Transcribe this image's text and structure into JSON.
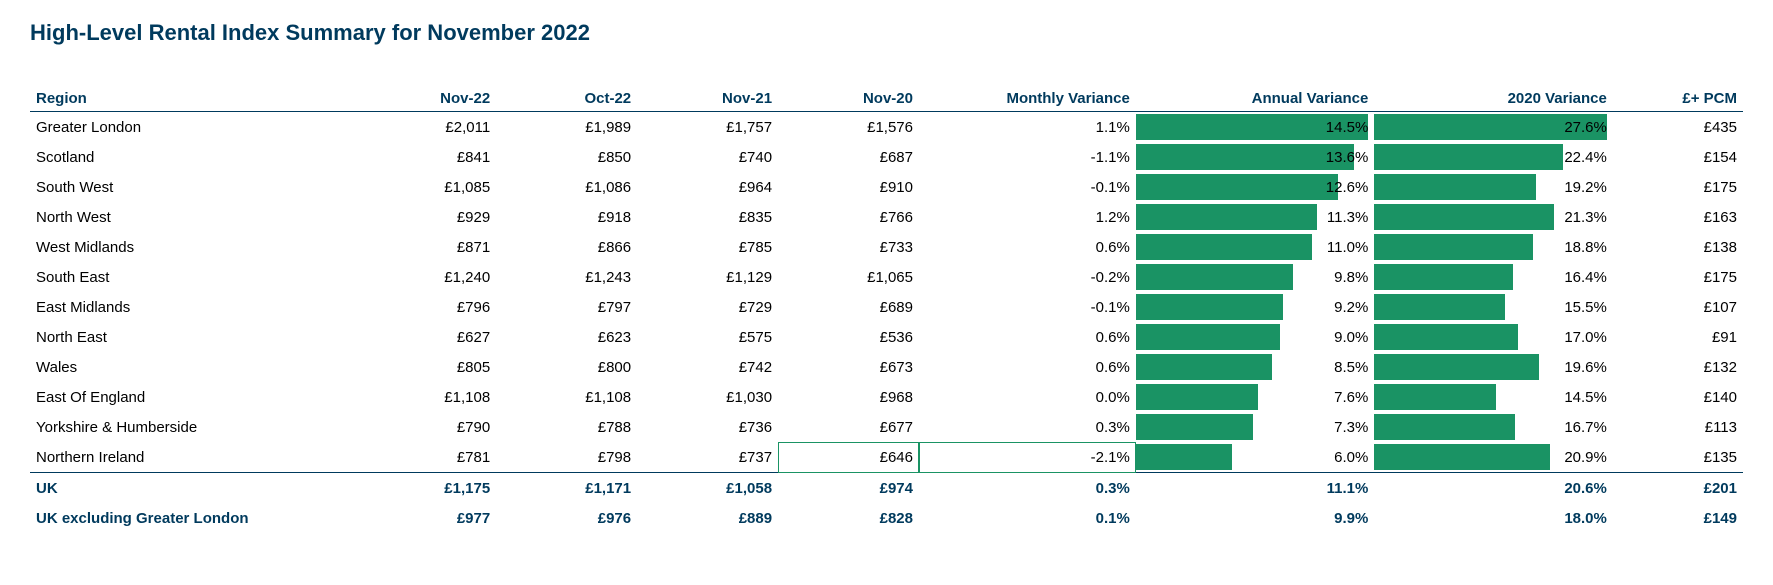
{
  "title": "High-Level Rental Index Summary for November 2022",
  "header_color": "#003a5d",
  "bar_color": "#1a9364",
  "columns": {
    "region": "Region",
    "nov22": "Nov-22",
    "oct22": "Oct-22",
    "nov21": "Nov-21",
    "nov20": "Nov-20",
    "mv": "Monthly Variance",
    "av": "Annual Variance",
    "v20": "2020 Variance",
    "pcm": "£+ PCM"
  },
  "av_max": 14.5,
  "v20_max": 27.6,
  "rows": [
    {
      "region": "Greater London",
      "nov22": "£2,011",
      "oct22": "£1,989",
      "nov21": "£1,757",
      "nov20": "£1,576",
      "mv": "1.1%",
      "av": "14.5%",
      "av_n": 14.5,
      "v20": "27.6%",
      "v20_n": 27.6,
      "pcm": "£435"
    },
    {
      "region": "Scotland",
      "nov22": "£841",
      "oct22": "£850",
      "nov21": "£740",
      "nov20": "£687",
      "mv": "-1.1%",
      "av": "13.6%",
      "av_n": 13.6,
      "v20": "22.4%",
      "v20_n": 22.4,
      "pcm": "£154"
    },
    {
      "region": "South West",
      "nov22": "£1,085",
      "oct22": "£1,086",
      "nov21": "£964",
      "nov20": "£910",
      "mv": "-0.1%",
      "av": "12.6%",
      "av_n": 12.6,
      "v20": "19.2%",
      "v20_n": 19.2,
      "pcm": "£175"
    },
    {
      "region": "North West",
      "nov22": "£929",
      "oct22": "£918",
      "nov21": "£835",
      "nov20": "£766",
      "mv": "1.2%",
      "av": "11.3%",
      "av_n": 11.3,
      "v20": "21.3%",
      "v20_n": 21.3,
      "pcm": "£163"
    },
    {
      "region": "West Midlands",
      "nov22": "£871",
      "oct22": "£866",
      "nov21": "£785",
      "nov20": "£733",
      "mv": "0.6%",
      "av": "11.0%",
      "av_n": 11.0,
      "v20": "18.8%",
      "v20_n": 18.8,
      "pcm": "£138"
    },
    {
      "region": "South East",
      "nov22": "£1,240",
      "oct22": "£1,243",
      "nov21": "£1,129",
      "nov20": "£1,065",
      "mv": "-0.2%",
      "av": "9.8%",
      "av_n": 9.8,
      "v20": "16.4%",
      "v20_n": 16.4,
      "pcm": "£175"
    },
    {
      "region": "East Midlands",
      "nov22": "£796",
      "oct22": "£797",
      "nov21": "£729",
      "nov20": "£689",
      "mv": "-0.1%",
      "av": "9.2%",
      "av_n": 9.2,
      "v20": "15.5%",
      "v20_n": 15.5,
      "pcm": "£107"
    },
    {
      "region": "North East",
      "nov22": "£627",
      "oct22": "£623",
      "nov21": "£575",
      "nov20": "£536",
      "mv": "0.6%",
      "av": "9.0%",
      "av_n": 9.0,
      "v20": "17.0%",
      "v20_n": 17.0,
      "pcm": "£91"
    },
    {
      "region": "Wales",
      "nov22": "£805",
      "oct22": "£800",
      "nov21": "£742",
      "nov20": "£673",
      "mv": "0.6%",
      "av": "8.5%",
      "av_n": 8.5,
      "v20": "19.6%",
      "v20_n": 19.6,
      "pcm": "£132"
    },
    {
      "region": "East Of England",
      "nov22": "£1,108",
      "oct22": "£1,108",
      "nov21": "£1,030",
      "nov20": "£968",
      "mv": "0.0%",
      "av": "7.6%",
      "av_n": 7.6,
      "v20": "14.5%",
      "v20_n": 14.5,
      "pcm": "£140"
    },
    {
      "region": "Yorkshire & Humberside",
      "nov22": "£790",
      "oct22": "£788",
      "nov21": "£736",
      "nov20": "£677",
      "mv": "0.3%",
      "av": "7.3%",
      "av_n": 7.3,
      "v20": "16.7%",
      "v20_n": 16.7,
      "pcm": "£113"
    },
    {
      "region": "Northern Ireland",
      "nov22": "£781",
      "oct22": "£798",
      "nov21": "£737",
      "nov20": "£646",
      "mv": "-2.1%",
      "av": "6.0%",
      "av_n": 6.0,
      "v20": "20.9%",
      "v20_n": 20.9,
      "pcm": "£135",
      "highlight_nov20_mv": true
    }
  ],
  "summary": [
    {
      "region": "UK",
      "nov22": "£1,175",
      "oct22": "£1,171",
      "nov21": "£1,058",
      "nov20": "£974",
      "mv": "0.3%",
      "av": "11.1%",
      "v20": "20.6%",
      "pcm": "£201"
    },
    {
      "region": "UK excluding Greater London",
      "nov22": "£977",
      "oct22": "£976",
      "nov21": "£889",
      "nov20": "£828",
      "mv": "0.1%",
      "av": "9.9%",
      "v20": "18.0%",
      "pcm": "£149"
    }
  ]
}
